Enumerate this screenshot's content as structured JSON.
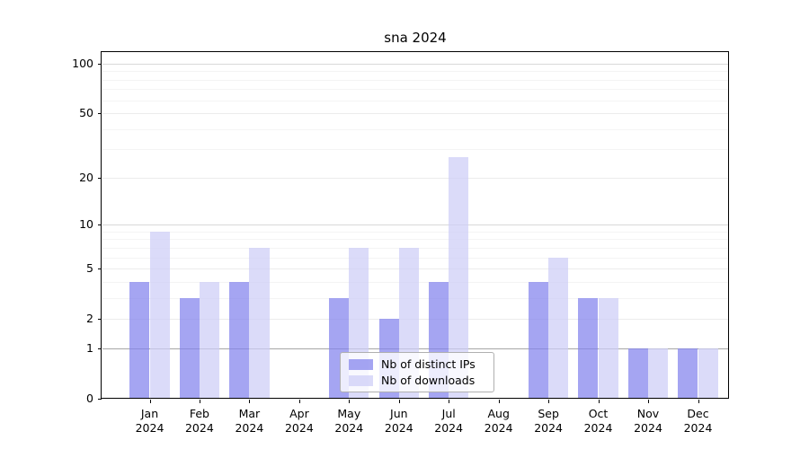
{
  "chart_data": {
    "type": "bar",
    "title": "sna 2024",
    "x": [
      "Jan",
      "Feb",
      "Mar",
      "Apr",
      "May",
      "Jun",
      "Jul",
      "Aug",
      "Sep",
      "Oct",
      "Nov",
      "Dec"
    ],
    "x_year": "2024",
    "series": [
      {
        "name": "Nb of distinct IPs",
        "color": "#8282ed",
        "alpha": 0.72,
        "values": [
          4,
          3,
          4,
          0,
          3,
          2,
          4,
          0,
          4,
          3,
          1,
          1
        ]
      },
      {
        "name": "Nb of downloads",
        "color": "#cdcdf7",
        "alpha": 0.72,
        "values": [
          9,
          4,
          7,
          0,
          7,
          7,
          27,
          0,
          6,
          3,
          1,
          1
        ]
      }
    ],
    "y_scale": "log1p",
    "ylim": [
      0,
      117
    ],
    "y_ticks": [
      0,
      1,
      2,
      5,
      10,
      20,
      50,
      100
    ],
    "y_gridlines": [
      1,
      2,
      3,
      4,
      5,
      6,
      7,
      8,
      9,
      10,
      20,
      30,
      40,
      50,
      60,
      70,
      80,
      90,
      100
    ],
    "grid": true,
    "legend_position": "lower center"
  }
}
